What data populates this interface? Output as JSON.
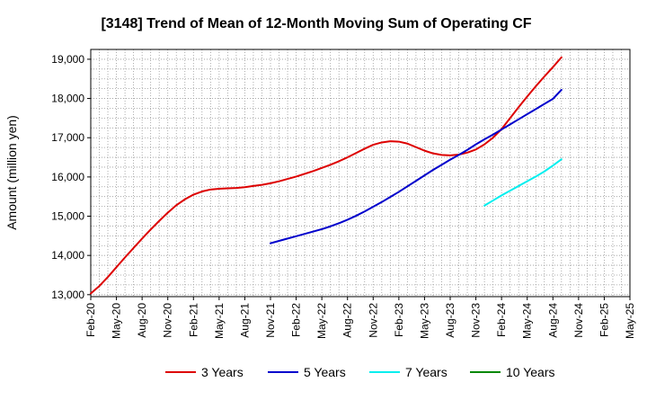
{
  "chart_data": {
    "type": "line",
    "title": "[3148]  Trend of Mean of 12-Month Moving Sum of Operating CF",
    "xlabel": "",
    "ylabel": "Amount (million yen)",
    "ylim": [
      12950,
      19250
    ],
    "yticks": [
      13000,
      14000,
      15000,
      16000,
      17000,
      18000,
      19000
    ],
    "ytick_labels": [
      "13,000",
      "14,000",
      "15,000",
      "16,000",
      "17,000",
      "18,000",
      "19,000"
    ],
    "xlim": [
      0,
      63
    ],
    "xticks": [
      0,
      3,
      6,
      9,
      12,
      15,
      18,
      21,
      24,
      27,
      30,
      33,
      36,
      39,
      42,
      45,
      48,
      51,
      54,
      57,
      60,
      63
    ],
    "xtick_labels": [
      "Feb-20",
      "May-20",
      "Aug-20",
      "Nov-20",
      "Feb-21",
      "May-21",
      "Aug-21",
      "Nov-21",
      "Feb-22",
      "May-22",
      "Aug-22",
      "Nov-22",
      "Feb-23",
      "May-23",
      "Aug-23",
      "Nov-23",
      "Feb-24",
      "May-24",
      "Aug-24",
      "Nov-24",
      "Feb-25",
      "May-25"
    ],
    "grid": true,
    "legend_position": "bottom",
    "series": [
      {
        "name": "3 Years",
        "color": "#dd0000",
        "x": [
          0,
          1,
          2,
          3,
          4,
          5,
          6,
          7,
          8,
          9,
          10,
          11,
          12,
          13,
          14,
          15,
          16,
          17,
          18,
          19,
          20,
          21,
          22,
          23,
          24,
          25,
          26,
          27,
          28,
          29,
          30,
          31,
          32,
          33,
          34,
          35,
          36,
          37,
          38,
          39,
          40,
          41,
          42,
          43,
          44,
          45,
          46,
          47,
          48,
          49,
          50,
          51,
          52,
          53,
          54,
          55,
          56,
          57,
          58,
          59,
          60
        ],
        "values": [
          13030,
          13220,
          13450,
          13700,
          13950,
          14190,
          14430,
          14660,
          14880,
          15090,
          15280,
          15430,
          15550,
          15630,
          15680,
          15700,
          15710,
          15720,
          15740,
          15770,
          15800,
          15840,
          15890,
          15950,
          16010,
          16080,
          16150,
          16230,
          16310,
          16400,
          16500,
          16610,
          16720,
          16820,
          16880,
          16910,
          16900,
          16850,
          16760,
          16670,
          16600,
          16560,
          16550,
          16570,
          16620,
          16700,
          16830,
          17000,
          17220,
          17500,
          17780,
          18050,
          18310,
          18560,
          18800,
          19050,
          null,
          null,
          null,
          null,
          null
        ]
      },
      {
        "name": "5 Years",
        "color": "#0000cc",
        "x": [
          21,
          22,
          23,
          24,
          25,
          26,
          27,
          28,
          29,
          30,
          31,
          32,
          33,
          34,
          35,
          36,
          37,
          38,
          39,
          40,
          41,
          42,
          43,
          44,
          45,
          46,
          47,
          48,
          49,
          50,
          51,
          52,
          53,
          54,
          55
        ],
        "values": [
          14310,
          14370,
          14430,
          14490,
          14550,
          14610,
          14670,
          14740,
          14820,
          14910,
          15010,
          15120,
          15240,
          15360,
          15490,
          15620,
          15760,
          15900,
          16040,
          16180,
          16310,
          16440,
          16560,
          16690,
          16830,
          16960,
          17080,
          17210,
          17340,
          17470,
          17600,
          17730,
          17860,
          17990,
          18220
        ]
      },
      {
        "name": "7 Years",
        "color": "#00eeee",
        "x": [
          46,
          47,
          48,
          49,
          50,
          51,
          52,
          53,
          54,
          55
        ],
        "values": [
          15270,
          15400,
          15530,
          15650,
          15770,
          15890,
          16010,
          16140,
          16290,
          16450
        ]
      },
      {
        "name": "10 Years",
        "color": "#008800",
        "x": [],
        "values": []
      }
    ]
  }
}
